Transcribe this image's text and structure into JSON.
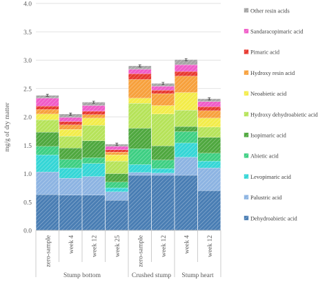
{
  "chart_data": {
    "type": "bar",
    "stacked": true,
    "ylabel": "mg/g of dry matter",
    "ylim": [
      0,
      4.0
    ],
    "yticks": [
      "0.0",
      "0.5",
      "1.0",
      "1.5",
      "2.0",
      "2.5",
      "3.0",
      "3.5",
      "4.0"
    ],
    "categories": [
      "zero-sample",
      "week 4",
      "week 12",
      "week 25",
      "zero-sample",
      "week 12",
      "week 4",
      "week 12"
    ],
    "groups": [
      {
        "label": "Stump bottom",
        "count": 4
      },
      {
        "label": "Crushed stump",
        "count": 2
      },
      {
        "label": "Stump heart",
        "count": 2
      }
    ],
    "grid": true,
    "legend_position": "right",
    "series": [
      {
        "name": "Dehydroabietic acid",
        "color": "#4a7eb4",
        "values": [
          0.63,
          0.62,
          0.62,
          0.53,
          0.97,
          0.97,
          0.97,
          0.7
        ]
      },
      {
        "name": "Palustric acid",
        "color": "#8db4e2",
        "values": [
          0.4,
          0.3,
          0.33,
          0.15,
          0.05,
          0.04,
          0.32,
          0.4
        ]
      },
      {
        "name": "Levopimaric acid",
        "color": "#35d6d6",
        "values": [
          0.3,
          0.18,
          0.23,
          0.07,
          0.14,
          0.08,
          0.25,
          0.12
        ]
      },
      {
        "name": "Abietic acid",
        "color": "#3ecf83",
        "values": [
          0.15,
          0.15,
          0.1,
          0.1,
          0.28,
          0.15,
          0.2,
          0.14
        ]
      },
      {
        "name": "Isopimaric acid",
        "color": "#4fa83f",
        "values": [
          0.25,
          0.2,
          0.3,
          0.15,
          0.36,
          0.25,
          0.09,
          0.28
        ]
      },
      {
        "name": "Hydroxy dehydroabietic acid",
        "color": "#b6e35a",
        "values": [
          0.22,
          0.21,
          0.27,
          0.22,
          0.44,
          0.56,
          0.29,
          0.18
        ]
      },
      {
        "name": "Neoabietic acid",
        "color": "#f3ec4a",
        "values": [
          0.1,
          0.12,
          0.13,
          0.11,
          0.09,
          0.15,
          0.31,
          0.16
        ]
      },
      {
        "name": "Hydroxy resin acid",
        "color": "#f7a13d",
        "values": [
          0.08,
          0.08,
          0.06,
          0.05,
          0.33,
          0.21,
          0.29,
          0.13
        ]
      },
      {
        "name": "Pimaric acid",
        "color": "#e8392f",
        "values": [
          0.06,
          0.06,
          0.06,
          0.04,
          0.1,
          0.06,
          0.08,
          0.07
        ]
      },
      {
        "name": "Sandaracopimaric acid",
        "color": "#f05cc8",
        "values": [
          0.14,
          0.07,
          0.1,
          0.06,
          0.08,
          0.07,
          0.12,
          0.09
        ]
      },
      {
        "name": "Other resin acids",
        "color": "#a6a6a6",
        "values": [
          0.05,
          0.06,
          0.06,
          0.04,
          0.06,
          0.05,
          0.09,
          0.05
        ]
      }
    ]
  }
}
